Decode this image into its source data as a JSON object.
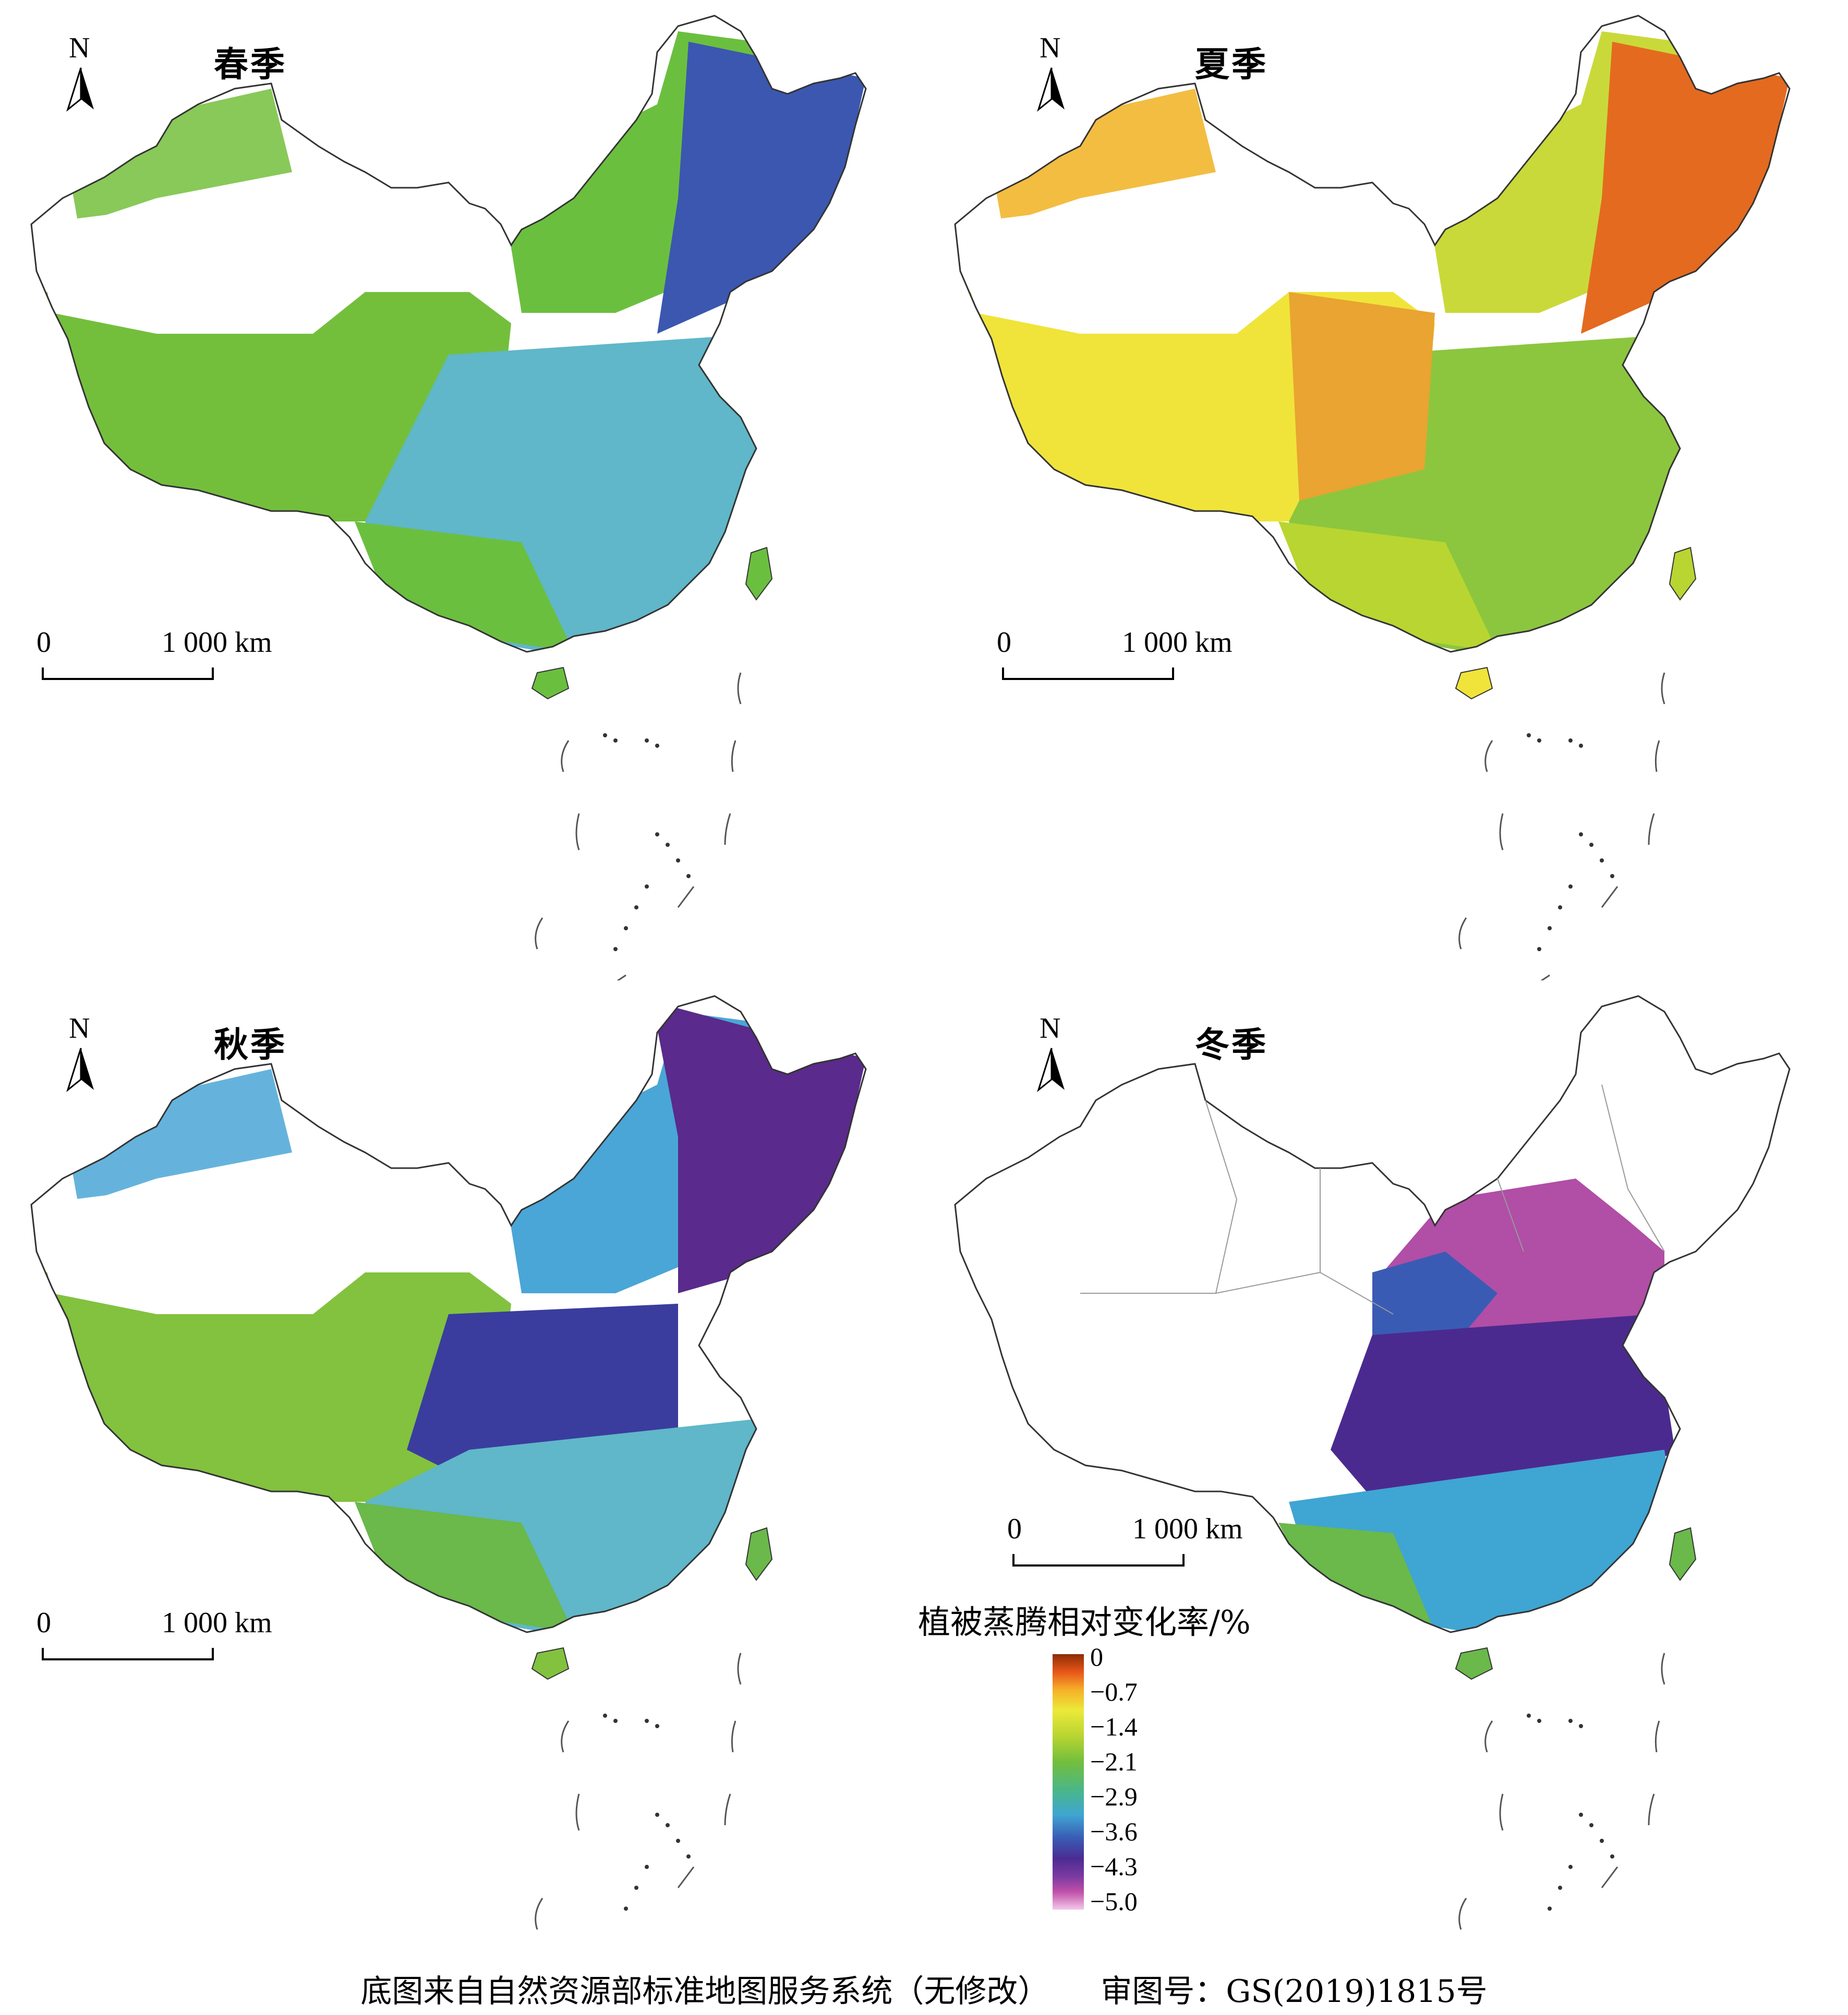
{
  "panels": [
    {
      "title": "春季",
      "key": "spring"
    },
    {
      "title": "夏季",
      "key": "summer"
    },
    {
      "title": "秋季",
      "key": "autumn"
    },
    {
      "title": "冬季",
      "key": "winter"
    }
  ],
  "north_label": "N",
  "scale": {
    "zero": "0",
    "length": "1 000 km"
  },
  "legend": {
    "title": "植被蒸腾相对变化率/%",
    "ticks": [
      "0",
      "−0.7",
      "−1.4",
      "−2.1",
      "−2.9",
      "−3.6",
      "−4.3",
      "−5.0"
    ]
  },
  "footer": {
    "source": "底图来自自然资源部标准地图服务系统（无修改）",
    "approval": "审图号：GS(2019)1815号"
  },
  "colors": {
    "spring": {
      "north": "#6bbf3f",
      "northeast": "#3b57b0",
      "south": "#5fb7c9",
      "west": "#73bf3c"
    },
    "summer": {
      "north": "#e9a431",
      "northeast": "#e46a1f",
      "south": "#8cc63e",
      "west": "#f0e43a"
    },
    "autumn": {
      "north": "#4aa6d6",
      "northeast": "#5a2a8c",
      "south": "#6ab94a",
      "west": "#82c23f"
    },
    "winter": {
      "east": "#4b2a8f",
      "north": "#b14ea6",
      "south": "#3fa5d3"
    }
  }
}
